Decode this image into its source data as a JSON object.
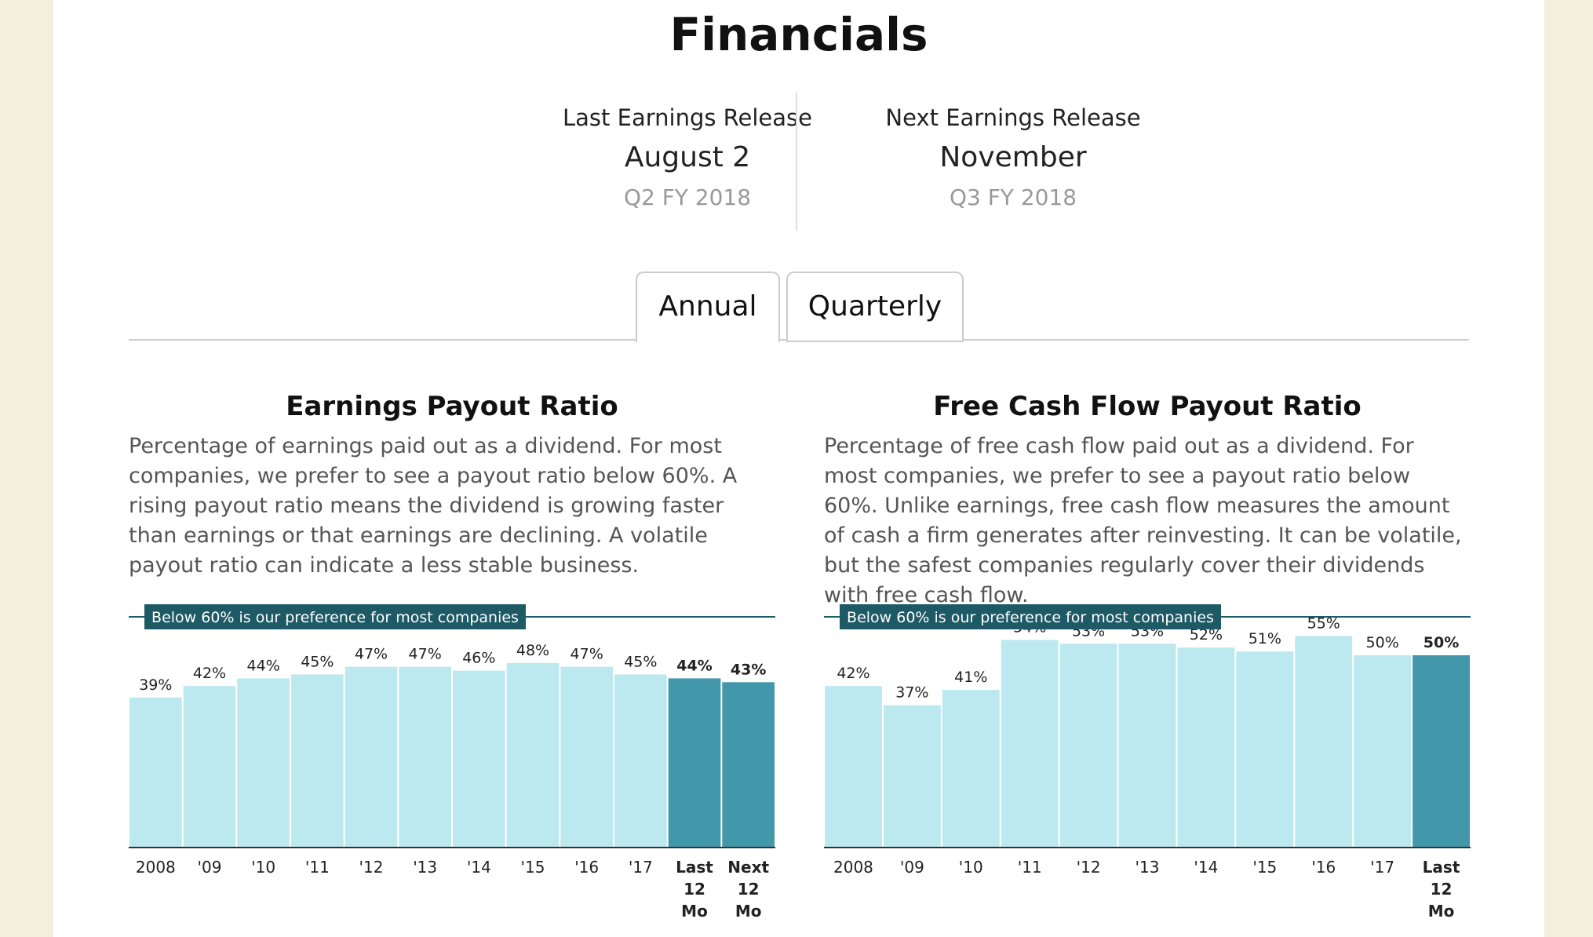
{
  "title": "Financials",
  "last_release": {
    "label": "Last Earnings Release",
    "date": "August 2",
    "period": "Q2 FY 2018"
  },
  "next_release": {
    "label": "Next Earnings Release",
    "date": "November",
    "period": "Q3 FY 2018"
  },
  "tabs": [
    {
      "label": "Annual",
      "active": true
    },
    {
      "label": "Quarterly",
      "active": false
    }
  ],
  "colors": {
    "bar_historical": "#bce9f0",
    "bar_current": "#4397ab",
    "badge_bg": "#1e5a66",
    "baseline": "#333333",
    "threshold_line": "#1e5a66"
  },
  "chart_data": [
    {
      "type": "bar",
      "title": "Earnings Payout Ratio",
      "description": "Percentage of earnings paid out as a dividend. For most companies, we prefer to see a payout ratio below 60%. A rising payout ratio means the dividend is growing faster than earnings or that earnings are declining. A volatile payout ratio can indicate a less stable business.",
      "threshold": 60,
      "threshold_label": "Below 60% is our preference for most companies",
      "unit": "%",
      "ylim": [
        0,
        60
      ],
      "categories": [
        "2008",
        "'09",
        "'10",
        "'11",
        "'12",
        "'13",
        "'14",
        "'15",
        "'16",
        "'17",
        "Last 12 Mo",
        "Next 12 Mo"
      ],
      "values": [
        39,
        42,
        44,
        45,
        47,
        47,
        46,
        48,
        47,
        45,
        44,
        43
      ],
      "highlighted": [
        false,
        false,
        false,
        false,
        false,
        false,
        false,
        false,
        false,
        false,
        true,
        true
      ]
    },
    {
      "type": "bar",
      "title": "Free Cash Flow Payout Ratio",
      "description": "Percentage of free cash flow paid out as a dividend. For most companies, we prefer to see a payout ratio below 60%. Unlike earnings, free cash flow measures the amount of cash a firm generates after reinvesting. It can be volatile, but the safest companies regularly cover their dividends with free cash flow.",
      "threshold": 60,
      "threshold_label": "Below 60% is our preference for most companies",
      "unit": "%",
      "ylim": [
        0,
        60
      ],
      "categories": [
        "2008",
        "'09",
        "'10",
        "'11",
        "'12",
        "'13",
        "'14",
        "'15",
        "'16",
        "'17",
        "Last 12 Mo"
      ],
      "values": [
        42,
        37,
        41,
        54,
        53,
        53,
        52,
        51,
        55,
        50,
        50
      ],
      "highlighted": [
        false,
        false,
        false,
        false,
        false,
        false,
        false,
        false,
        false,
        false,
        true
      ]
    }
  ]
}
